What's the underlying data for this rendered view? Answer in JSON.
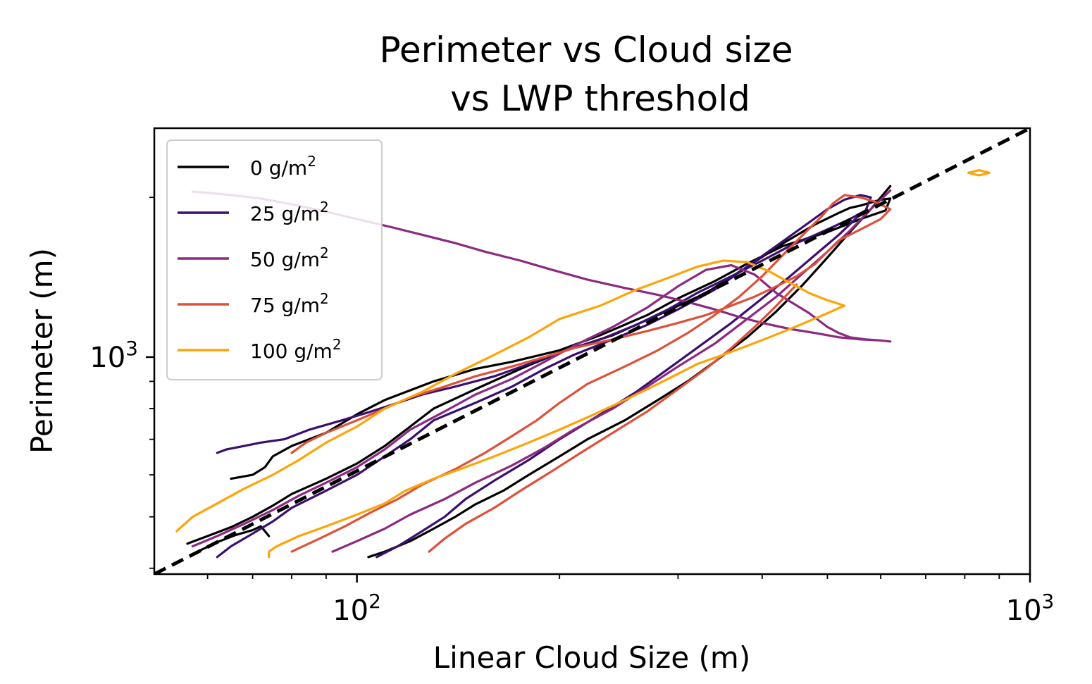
{
  "chart_data": {
    "type": "line",
    "title": [
      "Perimeter vs Cloud size",
      "vs  LWP threshold"
    ],
    "xlabel": "Linear Cloud Size (m)",
    "ylabel": "Perimeter (m)",
    "xscale": "log",
    "yscale": "log",
    "xlim": [
      50,
      1000
    ],
    "ylim": [
      390,
      2700
    ],
    "xticks": [
      {
        "value": 100,
        "base": "10",
        "exp": "2"
      },
      {
        "value": 1000,
        "base": "10",
        "exp": "3"
      }
    ],
    "yticks": [
      {
        "value": 1000,
        "base": "10",
        "exp": "3"
      }
    ],
    "legend_position": "upper-left",
    "reference_line": {
      "name": "1:1 reference",
      "style": "dashed",
      "color": "#000000",
      "x": [
        50,
        1000
      ],
      "y": [
        390,
        2700
      ]
    },
    "series": [
      {
        "name": "0 g/m",
        "sup": "2",
        "color": "#000000",
        "contours": [
          {
            "x": [
              56,
              60,
              65,
              70,
              75,
              80,
              90,
              100,
              110,
              120,
              130,
              150,
              175,
              200,
              240,
              280,
              330,
              380,
              430,
              480,
              520,
              540,
              560,
              600,
              620,
              610,
              560,
              500,
              430,
              380,
              340,
              300,
              270,
              230,
              200,
              170,
              150,
              130,
              110,
              100,
              90,
              80,
              75,
              73,
              70,
              65
            ],
            "y": [
              445,
              460,
              478,
              500,
              525,
              552,
              590,
              630,
              680,
              740,
              800,
              870,
              950,
              1020,
              1100,
              1200,
              1320,
              1480,
              1640,
              1780,
              1870,
              1910,
              1930,
              1980,
              1990,
              1890,
              1820,
              1720,
              1620,
              1500,
              1390,
              1290,
              1200,
              1100,
              1030,
              980,
              950,
              900,
              830,
              780,
              720,
              680,
              650,
              620,
              600,
              590
            ]
          },
          {
            "x": [
              58,
              62,
              66,
              70,
              72,
              73,
              74
            ],
            "y": [
              430,
              448,
              462,
              472,
              480,
              470,
              460
            ]
          },
          {
            "x": [
              104,
              110,
              120,
              130,
              140,
              150,
              165,
              180,
              200,
              220,
              250,
              280,
              310,
              340,
              380,
              420,
              460,
              500,
              540,
              580,
              620
            ],
            "y": [
              420,
              430,
              450,
              475,
              500,
              528,
              560,
              600,
              650,
              700,
              760,
              830,
              900,
              980,
              1090,
              1220,
              1370,
              1540,
              1720,
              1900,
              2100
            ]
          }
        ]
      },
      {
        "name": "25 g/m",
        "sup": "2",
        "color": "#3b0f70",
        "contours": [
          {
            "x": [
              62,
              65,
              70,
              75,
              80,
              90,
              100,
              110,
              120,
              130,
              150,
              170,
              190,
              210,
              240,
              270,
              300,
              340,
              380,
              420,
              460,
              500,
              530,
              560,
              580,
              570,
              540,
              510,
              480,
              440,
              400,
              360,
              320,
              290,
              260,
              230,
              200,
              180,
              160,
              140,
              125,
              115,
              105,
              95,
              85,
              78,
              72,
              68,
              64,
              62
            ],
            "y": [
              420,
              440,
              465,
              490,
              520,
              560,
              600,
              650,
              700,
              760,
              820,
              880,
              950,
              1010,
              1080,
              1150,
              1230,
              1340,
              1480,
              1620,
              1760,
              1900,
              1980,
              2020,
              2000,
              1890,
              1820,
              1760,
              1700,
              1620,
              1520,
              1420,
              1320,
              1230,
              1150,
              1080,
              1020,
              970,
              920,
              880,
              850,
              820,
              790,
              760,
              730,
              700,
              690,
              680,
              670,
              660
            ]
          },
          {
            "x": [
              107,
              115,
              125,
              135,
              145,
              160,
              180,
              200,
              230,
              260,
              290,
              320,
              360,
              400,
              440,
              480,
              520,
              560
            ],
            "y": [
              420,
              440,
              470,
              500,
              540,
              585,
              640,
              700,
              780,
              860,
              950,
              1040,
              1160,
              1290,
              1420,
              1560,
              1700,
              1860
            ]
          }
        ]
      },
      {
        "name": "50 g/m",
        "sup": "2",
        "color": "#8c2981",
        "contours": [
          {
            "x": [
              57,
              62,
              68,
              75,
              82,
              90,
              100,
              110,
              120,
              135,
              150,
              170,
              190,
              210,
              240,
              270,
              300,
              330,
              360,
              390,
              420,
              470,
              500,
              520,
              540,
              570,
              600,
              620,
              600,
              560,
              520,
              480,
              440,
              400,
              370,
              340,
              310,
              280,
              250,
              220,
              195,
              175,
              155,
              140,
              125,
              112,
              100,
              90,
              80,
              72,
              65,
              60,
              57
            ],
            "y": [
              440,
              460,
              485,
              515,
              548,
              580,
              620,
              670,
              730,
              790,
              850,
              910,
              980,
              1050,
              1140,
              1240,
              1360,
              1460,
              1490,
              1430,
              1320,
              1210,
              1140,
              1110,
              1090,
              1080,
              1075,
              1070,
              1075,
              1080,
              1090,
              1110,
              1130,
              1160,
              1190,
              1230,
              1270,
              1310,
              1350,
              1400,
              1460,
              1520,
              1580,
              1640,
              1700,
              1760,
              1820,
              1880,
              1940,
              1990,
              2020,
              2040,
              2050
            ]
          },
          {
            "x": [
              92,
              100,
              110,
              120,
              135,
              150,
              170,
              190,
              210,
              240,
              270,
              300,
              340,
              380,
              420,
              460,
              500,
              540,
              580,
              620
            ],
            "y": [
              430,
              450,
              475,
              505,
              540,
              580,
              625,
              675,
              730,
              800,
              880,
              960,
              1060,
              1180,
              1300,
              1440,
              1580,
              1730,
              1900,
              2060
            ]
          }
        ]
      },
      {
        "name": "75 g/m",
        "sup": "2",
        "color": "#dd513a",
        "contours": [
          {
            "x": [
              80,
              88,
              96,
              105,
              115,
              125,
              140,
              155,
              170,
              185,
              200,
              220,
              250,
              280,
              310,
              340,
              370,
              400,
              430,
              460,
              490,
              510,
              530,
              560,
              590,
              620,
              600,
              560,
              520,
              500,
              480,
              450,
              420,
              390,
              360,
              330,
              300,
              270,
              240,
              210,
              190,
              170,
              150,
              135,
              120,
              110,
              100,
              90,
              84,
              80
            ],
            "y": [
              430,
              455,
              480,
              510,
              540,
              575,
              615,
              660,
              710,
              760,
              820,
              890,
              960,
              1030,
              1110,
              1200,
              1300,
              1420,
              1560,
              1700,
              1840,
              1950,
              2020,
              2000,
              1960,
              1900,
              1820,
              1740,
              1660,
              1580,
              1500,
              1420,
              1360,
              1300,
              1250,
              1200,
              1160,
              1120,
              1080,
              1040,
              1000,
              960,
              920,
              880,
              840,
              800,
              760,
              720,
              690,
              660
            ]
          },
          {
            "x": [
              128,
              135,
              145,
              160,
              175,
              195,
              215,
              240,
              270,
              300,
              330,
              360,
              390,
              420,
              450
            ],
            "y": [
              430,
              455,
              485,
              520,
              560,
              610,
              660,
              720,
              790,
              870,
              950,
              1040,
              1140,
              1250,
              1370
            ]
          }
        ]
      },
      {
        "name": "100 g/m",
        "sup": "2",
        "color": "#fca50a",
        "contours": [
          {
            "x": [
              54,
              57,
              62,
              68,
              75,
              82,
              90,
              100,
              110,
              125,
              140,
              160,
              180,
              200,
              230,
              260,
              290,
              320,
              350,
              380,
              410,
              440,
              470,
              500,
              530,
              500,
              470,
              440,
              410,
              380,
              350,
              320,
              300,
              280,
              260,
              240,
              220,
              200,
              180,
              160,
              145,
              130,
              118,
              110,
              100,
              90,
              82,
              76,
              74,
              74
            ],
            "y": [
              470,
              500,
              530,
              565,
              600,
              640,
              690,
              740,
              800,
              860,
              930,
              1010,
              1090,
              1180,
              1250,
              1340,
              1410,
              1480,
              1520,
              1510,
              1450,
              1380,
              1320,
              1280,
              1250,
              1210,
              1170,
              1130,
              1090,
              1050,
              1010,
              970,
              930,
              890,
              850,
              810,
              770,
              730,
              690,
              650,
              620,
              590,
              560,
              530,
              505,
              480,
              460,
              440,
              430,
              420
            ]
          },
          {
            "x": [
              810,
              840,
              870,
              840,
              810
            ],
            "y": [
              2225,
              2250,
              2225,
              2200,
              2225
            ]
          }
        ]
      }
    ]
  }
}
